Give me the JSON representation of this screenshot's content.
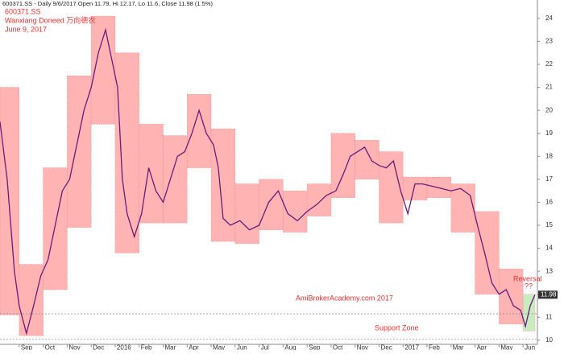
{
  "header": "600371.SS - Daily 9/6/2017 Open 11.79, Hi 12.17, Lo 11.6, Close 11.98 (1.5%)",
  "chart_data": {
    "type": "line",
    "title": "600371.SS",
    "subtitle": "Wanxiang Doneed 万向德农",
    "date": "June 9, 2017",
    "annotations": [
      "AmiBrokerAcademy.com  2017",
      "Support Zone",
      "Reversal",
      "??"
    ],
    "x": [
      0.2,
      0.5,
      0.8,
      1.0,
      1.3,
      1.6,
      1.9,
      2.2,
      2.5,
      2.8,
      3.1,
      3.4,
      3.7,
      4.0,
      4.3,
      4.6,
      4.9,
      5.1,
      5.3,
      5.5,
      5.8,
      6.1,
      6.4,
      6.7,
      7.0,
      7.3,
      7.6,
      7.9,
      8.2,
      8.5,
      8.8,
      9.1,
      9.3,
      9.5,
      9.8,
      10.2,
      10.6,
      11.0,
      11.4,
      11.8,
      12.2,
      12.6,
      13.0,
      13.4,
      13.8,
      14.2,
      14.5,
      14.8,
      15.1,
      15.4,
      15.7,
      16.0,
      16.3,
      16.6,
      16.9,
      17.2,
      17.5,
      17.8,
      18.2,
      18.6,
      19.0,
      19.4,
      19.8,
      20.1,
      20.4,
      20.7,
      21.0,
      21.3,
      21.6,
      21.9,
      22.1,
      22.3,
      22.5
    ],
    "values": [
      19.5,
      17,
      13,
      11.5,
      10.3,
      11.5,
      12.8,
      13.5,
      15,
      16.5,
      17,
      18.5,
      20,
      21,
      22.5,
      23.5,
      22,
      21,
      17,
      15.5,
      14.5,
      15.5,
      17.5,
      16.5,
      16,
      17,
      18,
      18.2,
      19,
      20,
      19,
      18.5,
      17.5,
      15.3,
      15,
      15.2,
      14.8,
      15,
      16,
      16.5,
      15.5,
      15.2,
      15.6,
      15.9,
      16.3,
      16.5,
      17.2,
      18,
      18.2,
      18.4,
      17.8,
      17.6,
      17.5,
      17.8,
      16.5,
      15.5,
      16.8,
      16.8,
      16.7,
      16.6,
      16.5,
      16.6,
      16.3,
      15,
      13.8,
      12.5,
      12,
      12.2,
      11.5,
      11.3,
      10.6,
      11.5,
      11.98
    ],
    "color": "#6a1b7a",
    "boxes": [
      {
        "x": [
          0,
          1
        ],
        "low": 11.1,
        "high": 21.0,
        "color": "#ffb3b3"
      },
      {
        "x": [
          1,
          2
        ],
        "low": 10.2,
        "high": 13.3,
        "color": "#ffb3b3"
      },
      {
        "x": [
          2,
          3
        ],
        "low": 12.2,
        "high": 17.5,
        "color": "#ffb3b3"
      },
      {
        "x": [
          3,
          4
        ],
        "low": 14.9,
        "high": 21.5,
        "color": "#ffb3b3"
      },
      {
        "x": [
          4,
          5
        ],
        "low": 19.4,
        "high": 24.1,
        "color": "#ffb3b3"
      },
      {
        "x": [
          5,
          6
        ],
        "low": 13.8,
        "high": 22.5,
        "color": "#ffb3b3"
      },
      {
        "x": [
          6,
          7
        ],
        "low": 15.1,
        "high": 19.4,
        "color": "#ffb3b3"
      },
      {
        "x": [
          7,
          8
        ],
        "low": 15.1,
        "high": 18.9,
        "color": "#ffb3b3"
      },
      {
        "x": [
          8,
          9
        ],
        "low": 17.5,
        "high": 20.7,
        "color": "#ffb3b3"
      },
      {
        "x": [
          9,
          10
        ],
        "low": 14.3,
        "high": 19.2,
        "color": "#ffb3b3"
      },
      {
        "x": [
          10,
          11
        ],
        "low": 14.2,
        "high": 16.8,
        "color": "#ffb3b3"
      },
      {
        "x": [
          11,
          12
        ],
        "low": 14.8,
        "high": 17.0,
        "color": "#ffb3b3"
      },
      {
        "x": [
          12,
          13
        ],
        "low": 14.7,
        "high": 16.5,
        "color": "#ffb3b3"
      },
      {
        "x": [
          13,
          14
        ],
        "low": 15.4,
        "high": 16.8,
        "color": "#ffb3b3"
      },
      {
        "x": [
          14,
          15
        ],
        "low": 16.2,
        "high": 19.0,
        "color": "#ffb3b3"
      },
      {
        "x": [
          15,
          16
        ],
        "low": 17.0,
        "high": 18.7,
        "color": "#ffb3b3"
      },
      {
        "x": [
          16,
          17
        ],
        "low": 15.1,
        "high": 18.2,
        "color": "#ffb3b3"
      },
      {
        "x": [
          17,
          18
        ],
        "low": 16.1,
        "high": 17.1,
        "color": "#ffb3b3"
      },
      {
        "x": [
          18,
          19
        ],
        "low": 16.2,
        "high": 17.1,
        "color": "#ffb3b3"
      },
      {
        "x": [
          19,
          20
        ],
        "low": 14.7,
        "high": 16.8,
        "color": "#ffb3b3"
      },
      {
        "x": [
          20,
          21
        ],
        "low": 12.0,
        "high": 15.6,
        "color": "#ffb3b3"
      },
      {
        "x": [
          21,
          22
        ],
        "low": 10.7,
        "high": 13.1,
        "color": "#ffb3b3"
      },
      {
        "x": [
          22,
          22.5
        ],
        "low": 10.4,
        "high": 12.0,
        "color": "#c8ecc0"
      }
    ],
    "ref_lines": [
      11.15,
      10.05
    ],
    "last_price": 11.98,
    "xlim": [
      0.2,
      22.6
    ],
    "xticks": [
      {
        "value": 1,
        "label": "Sep"
      },
      {
        "value": 2,
        "label": "Oct"
      },
      {
        "value": 3,
        "label": "Nov"
      },
      {
        "value": 4,
        "label": "Dec"
      },
      {
        "value": 5,
        "label": "2016"
      },
      {
        "value": 6,
        "label": "Feb"
      },
      {
        "value": 7,
        "label": "Mar"
      },
      {
        "value": 8,
        "label": "Apr"
      },
      {
        "value": 9,
        "label": "May"
      },
      {
        "value": 10,
        "label": "Jun"
      },
      {
        "value": 11,
        "label": "Jul"
      },
      {
        "value": 12,
        "label": "Aug"
      },
      {
        "value": 13,
        "label": "Sep"
      },
      {
        "value": 14,
        "label": "Oct"
      },
      {
        "value": 15,
        "label": "Nov"
      },
      {
        "value": 16,
        "label": "Dec"
      },
      {
        "value": 17,
        "label": "2017"
      },
      {
        "value": 18,
        "label": "Feb"
      },
      {
        "value": 19,
        "label": "Mar"
      },
      {
        "value": 20,
        "label": "Apr"
      },
      {
        "value": 21,
        "label": "May"
      },
      {
        "value": 22,
        "label": "Jun"
      }
    ],
    "ylim": [
      9.8,
      24.8
    ],
    "yticks": [
      10,
      11,
      12,
      13,
      14,
      15,
      16,
      17,
      18,
      19,
      20,
      21,
      22,
      23,
      24
    ]
  }
}
